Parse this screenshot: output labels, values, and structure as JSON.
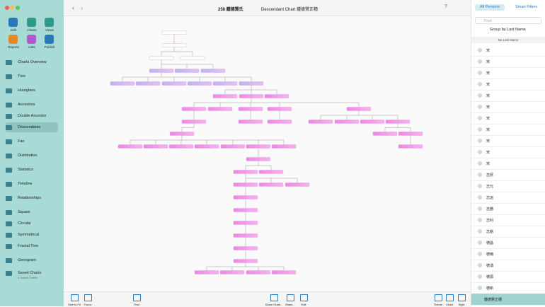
{
  "toolbar": {
    "database": "258 鍾德賢氏",
    "chart": "Descendant Chart 鍾德賢正穗"
  },
  "sidebar": {
    "actions": [
      "Edit",
      "Charts",
      "Views",
      "Reports",
      "Lists",
      "Publish"
    ],
    "items": [
      "Charts Overview",
      "Tree",
      "Hourglass",
      "Ancestors",
      "Double Ancestor",
      "Descendants",
      "Fan",
      "Distribution",
      "Statistics",
      "Timeline",
      "Relationships",
      "Square",
      "Circular",
      "Symmetrical",
      "Fractal Tree",
      "Genogram",
      "Saved Charts"
    ],
    "saved_count": "0 Saved Charts"
  },
  "bottom_bar": {
    "left": [
      "Size to Fit",
      "Focus",
      "Find"
    ],
    "center": [
      "Share Chart...",
      "Share...",
      "Edit"
    ],
    "right": [
      "Theme",
      "Chart",
      "Style"
    ]
  },
  "persons": {
    "tabs": [
      "All Persons",
      "Smart Filters"
    ],
    "search": "Find",
    "group": "Group by Last Name",
    "section": "No Last Name",
    "names": [
      "宋",
      "宋",
      "宋",
      "宋",
      "宋",
      "宋",
      "宋",
      "宋",
      "宋",
      "宋",
      "宋",
      "志厚",
      "志元",
      "志远",
      "志勝",
      "志利",
      "志銘",
      "德昌",
      "德楠",
      "德湧",
      "德源",
      "德新"
    ],
    "selected": "鍾德賢正穗"
  }
}
